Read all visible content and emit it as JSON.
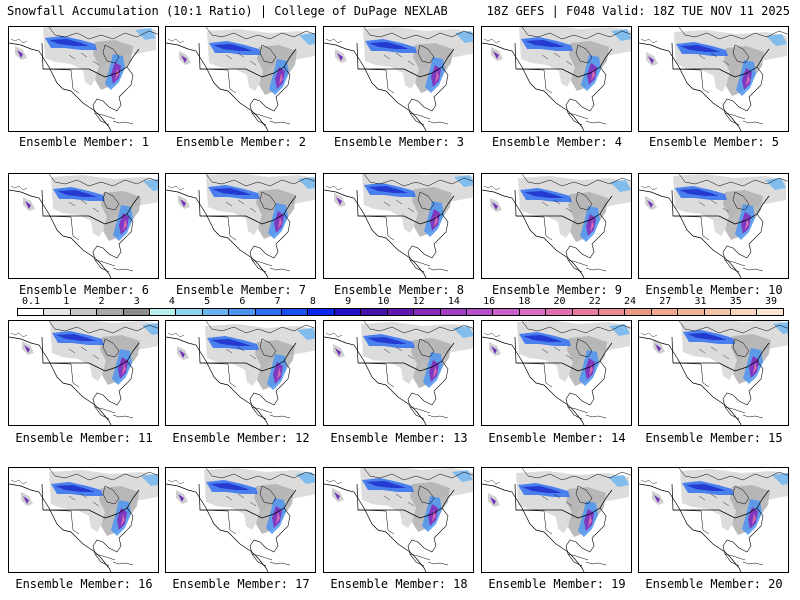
{
  "header": {
    "left": "Snowfall Accumulation (10:1 Ratio) | College of DuPage NEXLAB",
    "right": "18Z GEFS | F048 Valid: 18Z TUE NOV 11 2025"
  },
  "members": [
    {
      "label": "Ensemble Member: 1"
    },
    {
      "label": "Ensemble Member: 2"
    },
    {
      "label": "Ensemble Member: 3"
    },
    {
      "label": "Ensemble Member: 4"
    },
    {
      "label": "Ensemble Member: 5"
    },
    {
      "label": "Ensemble Member: 6"
    },
    {
      "label": "Ensemble Member: 7"
    },
    {
      "label": "Ensemble Member: 8"
    },
    {
      "label": "Ensemble Member: 9"
    },
    {
      "label": "Ensemble Member: 10"
    },
    {
      "label": "Ensemble Member: 11"
    },
    {
      "label": "Ensemble Member: 12"
    },
    {
      "label": "Ensemble Member: 13"
    },
    {
      "label": "Ensemble Member: 14"
    },
    {
      "label": "Ensemble Member: 15"
    },
    {
      "label": "Ensemble Member: 16"
    },
    {
      "label": "Ensemble Member: 17"
    },
    {
      "label": "Ensemble Member: 18"
    },
    {
      "label": "Ensemble Member: 19"
    },
    {
      "label": "Ensemble Member: 20"
    }
  ],
  "colorbar": {
    "labels": [
      "0.1",
      "1",
      "2",
      "3",
      "4",
      "5",
      "6",
      "7",
      "8",
      "9",
      "10",
      "12",
      "14",
      "16",
      "18",
      "20",
      "22",
      "24",
      "27",
      "31",
      "35",
      "39"
    ],
    "colors": [
      "#ffffff",
      "#e4e4e4",
      "#c8c8c8",
      "#a8a8a8",
      "#8c8c8c",
      "#b8f0f0",
      "#8cd4f0",
      "#6cb4f0",
      "#4c94f0",
      "#3070f0",
      "#1c50f0",
      "#0c28f0",
      "#2010c8",
      "#4410a8",
      "#6418b0",
      "#8428b8",
      "#a040c0",
      "#b450c8",
      "#c860c8",
      "#d86cc0",
      "#e070b0",
      "#e87ca0",
      "#e88c90",
      "#e89c88",
      "#eca88c",
      "#f0b498",
      "#f4c4a8",
      "#f8d4bc",
      "#fce4d4"
    ]
  }
}
